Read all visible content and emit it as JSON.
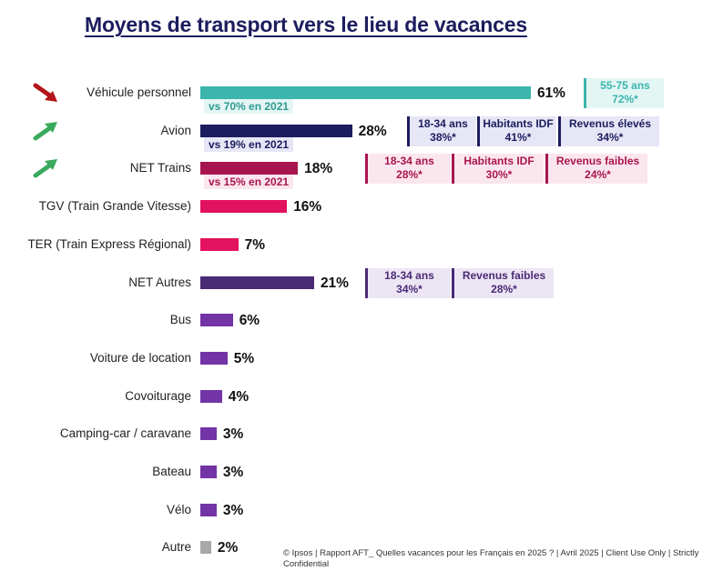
{
  "colors": {
    "teal": "#3cb5ac",
    "navy": "#1c1c5e",
    "crimson": "#a8154e",
    "pink": "#e2125e",
    "dark_purple": "#4a2a75",
    "purple": "#7334a6",
    "grey": "#a8a8a8"
  },
  "chart_data": {
    "type": "bar",
    "orientation": "horizontal",
    "title": "Moyens de transport vers le lieu de vacances",
    "value_unit": "%",
    "categories": [
      "Véhicule personnel",
      "Avion",
      "NET Trains",
      "TGV (Train Grande Vitesse)",
      "TER (Train Express Régional)",
      "NET Autres",
      "Bus",
      "Voiture de location",
      "Covoiturage",
      "Camping-car / caravane",
      "Bateau",
      "Vélo",
      "Autre"
    ],
    "values": [
      61,
      28,
      18,
      16,
      7,
      21,
      6,
      5,
      4,
      3,
      3,
      3,
      2
    ],
    "value_labels": [
      "61%",
      "28%",
      "18%",
      "16%",
      "7%",
      "21%",
      "6%",
      "5%",
      "4%",
      "3%",
      "3%",
      "3%",
      "2%"
    ],
    "bar_colors": [
      "#3cb5ac",
      "#1c1c5e",
      "#a8154e",
      "#e2125e",
      "#e2125e",
      "#4a2a75",
      "#7334a6",
      "#7334a6",
      "#7334a6",
      "#7334a6",
      "#7334a6",
      "#7334a6",
      "#a8a8a8"
    ],
    "comparisons": [
      {
        "row": 0,
        "text": "vs 70% en 2021",
        "trend": "down"
      },
      {
        "row": 1,
        "text": "vs 19% en 2021",
        "trend": "up"
      },
      {
        "row": 2,
        "text": "vs 15% en 2021",
        "trend": "up"
      }
    ],
    "segments": [
      {
        "row": 0,
        "color": "#3cb5ac",
        "bg": "#e3f6f4",
        "items": [
          {
            "label": "55-75 ans",
            "value": "72%*"
          }
        ]
      },
      {
        "row": 1,
        "color": "#1c1c5e",
        "bg": "#e6e6f6",
        "items": [
          {
            "label": "18-34 ans",
            "value": "38%*"
          },
          {
            "label": "Habitants IDF",
            "value": "41%*"
          },
          {
            "label": "Revenus élevés",
            "value": "34%*"
          }
        ]
      },
      {
        "row": 2,
        "color": "#a8154e",
        "bg": "#fbe6ee",
        "items": [
          {
            "label": "18-34 ans",
            "value": "28%*"
          },
          {
            "label": "Habitants IDF",
            "value": "30%*"
          },
          {
            "label": "Revenus faibles",
            "value": "24%*"
          }
        ]
      },
      {
        "row": 5,
        "color": "#4a2a75",
        "bg": "#ece6f4",
        "items": [
          {
            "label": "18-34 ans",
            "value": "34%*"
          },
          {
            "label": "Revenus faibles",
            "value": "28%*"
          }
        ]
      }
    ]
  },
  "footnote": "© Ipsos | Rapport AFT_ Quelles vacances pour les Français en 2025 ? | Avril 2025 | Client Use Only | Strictly Confidential"
}
